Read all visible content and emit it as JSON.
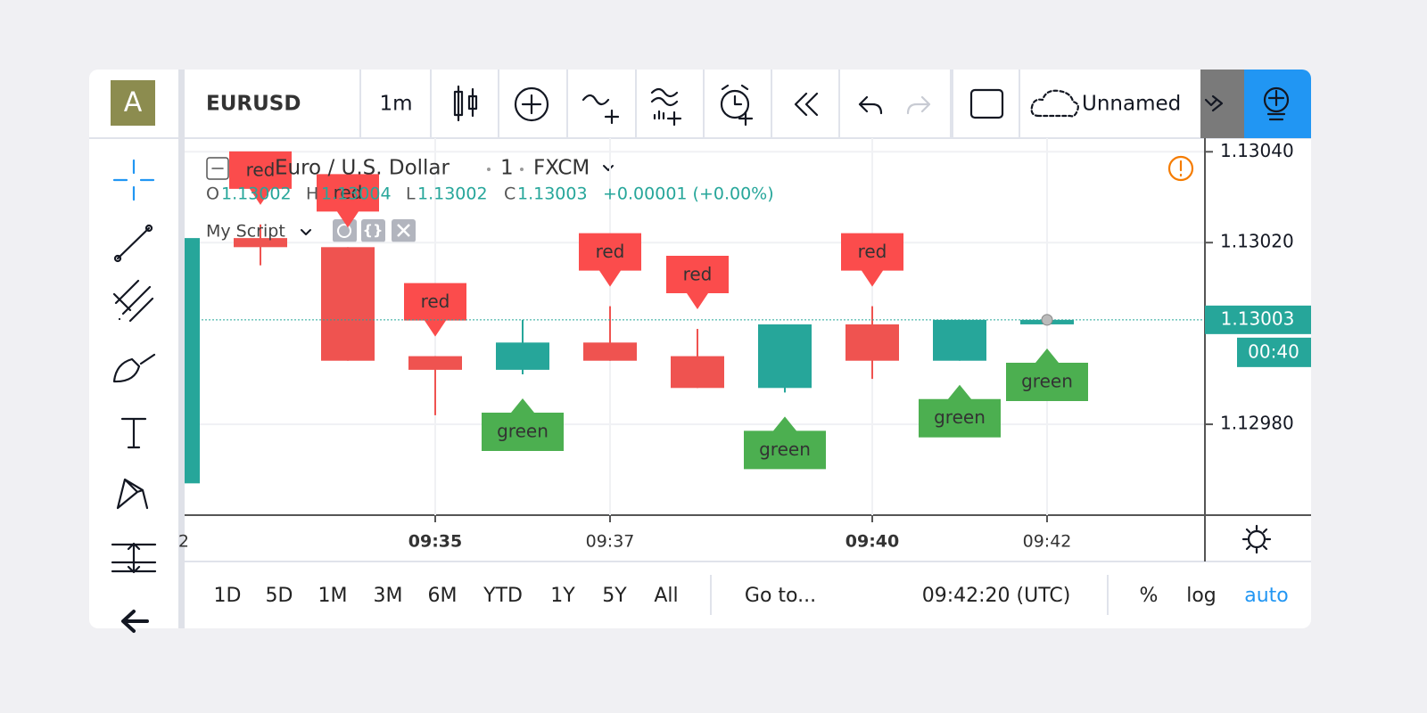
{
  "toolbar": {
    "avatar": "A",
    "symbol": "EURUSD",
    "interval": "1m",
    "layout_name": "Unnamed"
  },
  "legend": {
    "name": "Euro / U.S. Dollar",
    "interval": "1",
    "source": "FXCM",
    "o_label": "O",
    "o": "1.13002",
    "h_label": "H",
    "h": "1.13004",
    "l_label": "L",
    "l": "1.13002",
    "c_label": "C",
    "c": "1.13003",
    "change": "+0.00001 (+0.00%)",
    "script": "My Script"
  },
  "chart_data": {
    "type": "candlestick",
    "categories": [
      "2",
      null,
      null,
      "09:35",
      null,
      "09:37",
      null,
      null,
      "09:40",
      null,
      "09:42"
    ],
    "open": [
      1.12967,
      1.13021,
      1.13019,
      1.12995,
      1.12992,
      1.12998,
      1.12995,
      1.12988,
      1.13002,
      1.12994,
      1.13002
    ],
    "high": [
      1.13021,
      1.13024,
      1.13019,
      1.12995,
      1.13003,
      1.13006,
      1.13001,
      1.13002,
      1.13006,
      1.13003,
      1.13004
    ],
    "low": [
      1.12967,
      1.13015,
      1.12994,
      1.12982,
      1.12991,
      1.12994,
      1.12988,
      1.12987,
      1.1299,
      1.12994,
      1.13002
    ],
    "close": [
      1.13021,
      1.13019,
      1.12994,
      1.12992,
      1.12998,
      1.12994,
      1.12988,
      1.13002,
      1.12994,
      1.13003,
      1.13003
    ],
    "signals": [
      null,
      "red",
      "red",
      "red",
      "green",
      "red",
      "red",
      "green",
      "red",
      "green",
      "green"
    ],
    "up_color": "#26a69a",
    "down_color": "#ef5350",
    "signal_colors": {
      "red": "#fb4c4c",
      "green": "#4caf50"
    },
    "ylim": [
      1.1296,
      1.13043
    ],
    "yticks": [
      {
        "value": 1.1298,
        "label": "1.12980"
      },
      {
        "value": 1.1302,
        "label": "1.13020"
      },
      {
        "value": 1.1304,
        "label": "1.13040"
      }
    ],
    "last_price": {
      "value": 1.13003,
      "label": "1.13003"
    },
    "countdown": "00:40"
  },
  "bottom_bar": {
    "ranges": [
      "1D",
      "5D",
      "1M",
      "3M",
      "6M",
      "YTD",
      "1Y",
      "5Y",
      "All"
    ],
    "goto": "Go to...",
    "clock": "09:42:20 (UTC)",
    "percent": "%",
    "log": "log",
    "auto": "auto"
  }
}
